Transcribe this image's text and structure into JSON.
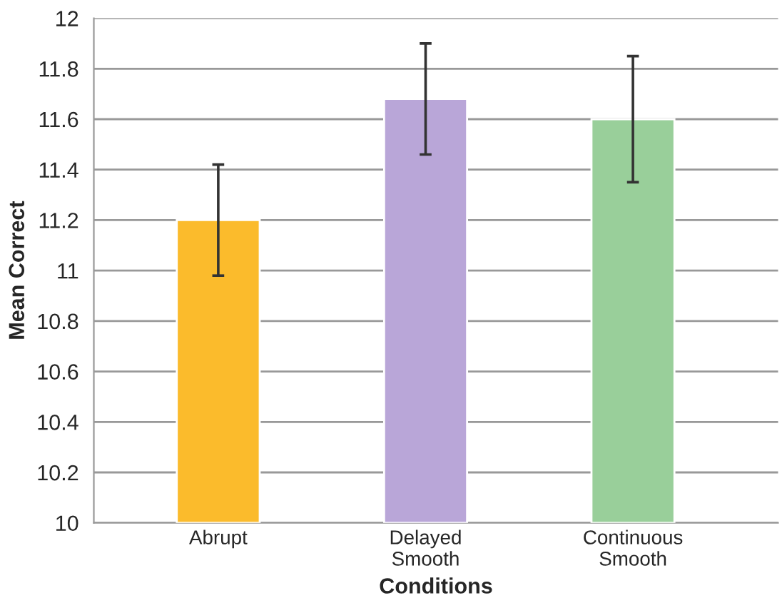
{
  "chart_data": {
    "type": "bar",
    "xlabel": "Conditions",
    "ylabel": "Mean Correct",
    "categories": [
      "Abrupt",
      "Delayed\nSmooth",
      "Continuous\nSmooth"
    ],
    "values": [
      11.2,
      11.68,
      11.6
    ],
    "colors": [
      "#fbbb2c",
      "#b9a6d8",
      "#99cf9a"
    ],
    "errors": [
      0.22,
      0.22,
      0.25
    ],
    "ylim": [
      10,
      12
    ],
    "yticks": [
      10,
      10.2,
      10.4,
      10.6,
      10.8,
      11,
      11.2,
      11.4,
      11.6,
      11.8,
      12
    ],
    "grid": "y"
  }
}
